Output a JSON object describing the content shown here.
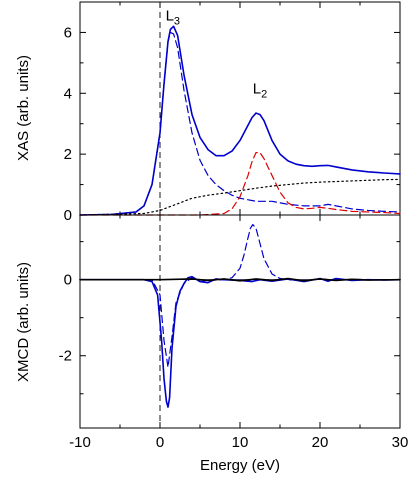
{
  "chart_data": [
    {
      "panel": "top",
      "type": "line",
      "ylabel": "XAS  (arb. units)",
      "xlim": [
        -10,
        30
      ],
      "ylim": [
        0,
        7
      ],
      "yticks": [
        0,
        2,
        4,
        6
      ],
      "ytick_labels": [
        "0",
        "2",
        "4",
        "6"
      ],
      "annotations": [
        {
          "text": "L",
          "sub": "3",
          "x": 1.6,
          "y": 6.4
        },
        {
          "text": "L",
          "sub": "2",
          "x": 12.5,
          "y": 4.0
        }
      ],
      "series": [
        {
          "color": "#0000cc",
          "style": "solid",
          "x": [
            -10,
            -6,
            -3,
            -2,
            -1,
            0,
            0.5,
            1,
            1.3,
            1.7,
            2.2,
            3,
            4,
            5,
            6,
            7,
            8,
            9,
            10,
            11,
            11.5,
            12,
            12.5,
            13,
            14,
            15,
            16,
            17,
            18,
            19,
            20,
            21,
            22,
            24,
            26,
            28,
            30
          ],
          "y": [
            0.0,
            0.02,
            0.1,
            0.3,
            1.0,
            2.7,
            4.3,
            5.7,
            6.1,
            6.2,
            5.9,
            4.6,
            3.3,
            2.55,
            2.15,
            1.95,
            1.95,
            2.1,
            2.45,
            2.95,
            3.2,
            3.35,
            3.3,
            3.1,
            2.45,
            2.0,
            1.78,
            1.67,
            1.62,
            1.6,
            1.62,
            1.63,
            1.58,
            1.48,
            1.42,
            1.38,
            1.35
          ]
        },
        {
          "color": "#0000cc",
          "style": "dashed",
          "x": [
            -10,
            -6,
            -3,
            -2,
            -1,
            0,
            0.5,
            1,
            1.3,
            1.7,
            2.2,
            3,
            4,
            5,
            6,
            7,
            8,
            9,
            10,
            12,
            14,
            16,
            18,
            20,
            21,
            22,
            24,
            26,
            28,
            30
          ],
          "y": [
            0.0,
            0.02,
            0.1,
            0.3,
            1.0,
            2.7,
            4.3,
            5.7,
            6.0,
            5.95,
            5.5,
            4.1,
            2.7,
            1.8,
            1.3,
            1.0,
            0.8,
            0.65,
            0.55,
            0.45,
            0.45,
            0.35,
            0.3,
            0.3,
            0.35,
            0.3,
            0.2,
            0.15,
            0.12,
            0.1
          ]
        },
        {
          "color": "#dd0000",
          "style": "dashed",
          "x": [
            -10,
            5,
            8,
            9,
            10,
            11,
            11.5,
            12,
            12.5,
            13,
            14,
            15,
            16,
            17,
            18,
            19,
            20,
            21,
            22,
            24,
            26,
            28,
            30
          ],
          "y": [
            0.0,
            0.0,
            0.05,
            0.2,
            0.6,
            1.3,
            1.75,
            2.05,
            2.05,
            1.85,
            1.3,
            0.75,
            0.4,
            0.25,
            0.2,
            0.22,
            0.25,
            0.22,
            0.18,
            0.12,
            0.1,
            0.08,
            0.05
          ]
        },
        {
          "color": "#000000",
          "style": "dotted",
          "x": [
            -10,
            -2,
            0,
            2,
            4,
            6,
            8,
            10,
            12,
            14,
            16,
            18,
            20,
            22,
            24,
            26,
            28,
            30
          ],
          "y": [
            0.0,
            0.05,
            0.15,
            0.35,
            0.55,
            0.65,
            0.72,
            0.8,
            0.88,
            0.95,
            1.0,
            1.05,
            1.08,
            1.1,
            1.12,
            1.14,
            1.16,
            1.17
          ]
        }
      ]
    },
    {
      "panel": "bottom",
      "type": "line",
      "xlabel": "Energy (eV)",
      "ylabel": "XMCD  (arb. units)",
      "xlim": [
        -10,
        30
      ],
      "ylim": [
        -3.9,
        1.7
      ],
      "xticks": [
        -10,
        0,
        10,
        20,
        30
      ],
      "xtick_labels": [
        "-10",
        "0",
        "10",
        "20",
        "30"
      ],
      "yticks": [
        -2,
        0
      ],
      "ytick_labels": [
        "-2",
        "0"
      ],
      "series": [
        {
          "color": "#0000cc",
          "style": "solid",
          "x": [
            -10,
            -2,
            -1,
            -0.3,
            0.2,
            0.5,
            0.8,
            1.0,
            1.2,
            1.5,
            2.0,
            2.5,
            3.0,
            3.5,
            4.0,
            5.0,
            6.0,
            7.0,
            8.0,
            10.0,
            11.5,
            12.5,
            14.0,
            16.0,
            18.0,
            20.0,
            21.0,
            22.0,
            24.0,
            26.0,
            28.0,
            30.0
          ],
          "y": [
            0.0,
            0.0,
            -0.05,
            -0.4,
            -1.6,
            -2.6,
            -3.2,
            -3.35,
            -3.1,
            -1.8,
            -0.7,
            -0.3,
            -0.1,
            0.05,
            0.08,
            -0.05,
            -0.08,
            0.02,
            0.0,
            -0.02,
            -0.05,
            0.0,
            -0.04,
            0.02,
            -0.05,
            0.03,
            -0.04,
            0.03,
            -0.02,
            0.0,
            -0.01,
            0.0
          ]
        },
        {
          "color": "#0000cc",
          "style": "dashed",
          "x": [
            -10,
            -1,
            0,
            0.5,
            1,
            1.5,
            2,
            3,
            4,
            5,
            6,
            8,
            9,
            10,
            10.5,
            11,
            11.3,
            11.6,
            12,
            12.5,
            13,
            14,
            15,
            16,
            18,
            20,
            22,
            24,
            26,
            28,
            30
          ],
          "y": [
            0.0,
            0.0,
            -0.4,
            -1.6,
            -2.3,
            -1.5,
            -0.6,
            -0.1,
            0.05,
            -0.05,
            -0.02,
            0.0,
            0.05,
            0.3,
            0.65,
            1.1,
            1.35,
            1.45,
            1.35,
            0.95,
            0.55,
            0.15,
            0.03,
            0.0,
            -0.02,
            0.02,
            -0.02,
            0.01,
            0.0,
            0.0,
            0.0
          ]
        },
        {
          "color": "#000000",
          "style": "solid",
          "x": [
            -10,
            0,
            4,
            6,
            8,
            10,
            12,
            14,
            16,
            18,
            20,
            22,
            24,
            26,
            30
          ],
          "y": [
            0.0,
            0.0,
            0.02,
            -0.02,
            0.02,
            -0.03,
            0.02,
            -0.02,
            0.03,
            -0.03,
            0.02,
            -0.02,
            0.01,
            -0.01,
            0.0
          ]
        }
      ]
    }
  ]
}
